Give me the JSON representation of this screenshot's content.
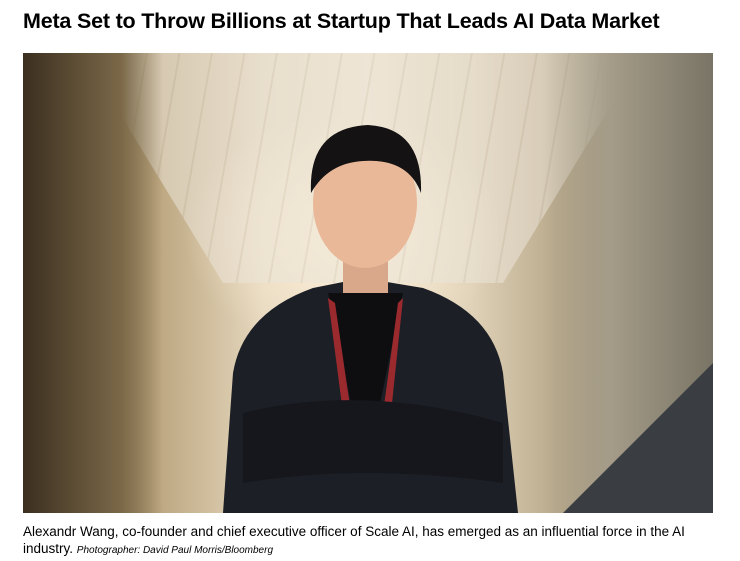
{
  "article": {
    "headline": "Meta Set to Throw Billions at Startup That Leads AI Data Market",
    "photo": {
      "caption": "Alexandr Wang, co-founder and chief executive officer of Scale AI, has emerged as an influential force in the AI industry.",
      "credit": "Photographer: David Paul Morris/Bloomberg"
    }
  }
}
